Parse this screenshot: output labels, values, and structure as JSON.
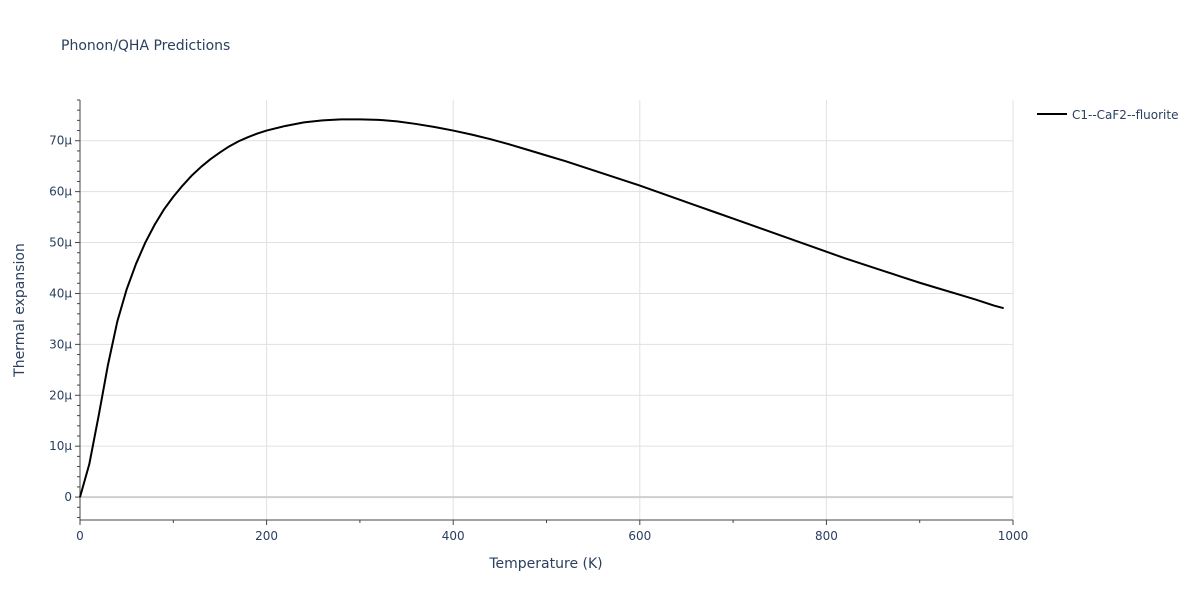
{
  "chart_data": {
    "type": "line",
    "title": "Phonon/QHA Predictions",
    "xlabel": "Temperature (K)",
    "ylabel": "Thermal expansion",
    "xlim": [
      0,
      1000
    ],
    "ylim": [
      -4.5e-06,
      7.8e-05
    ],
    "x_ticks": [
      0,
      200,
      400,
      600,
      800,
      1000
    ],
    "x_tick_labels": [
      "0",
      "200",
      "400",
      "600",
      "800",
      "1000"
    ],
    "y_ticks": [
      0,
      1e-05,
      2e-05,
      3e-05,
      4e-05,
      5e-05,
      6e-05,
      7e-05
    ],
    "y_tick_labels": [
      "0",
      "10μ",
      "20μ",
      "30μ",
      "40μ",
      "50μ",
      "60μ",
      "70μ"
    ],
    "grid": true,
    "legend_position": "top-right",
    "series": [
      {
        "name": "C1--CaF2--fluorite",
        "color": "#000000",
        "x": [
          0,
          10,
          20,
          30,
          40,
          50,
          60,
          70,
          80,
          90,
          100,
          110,
          120,
          130,
          140,
          150,
          160,
          170,
          180,
          190,
          200,
          220,
          240,
          260,
          280,
          300,
          320,
          340,
          360,
          380,
          400,
          420,
          440,
          460,
          480,
          500,
          520,
          540,
          560,
          580,
          600,
          620,
          640,
          660,
          680,
          700,
          720,
          740,
          760,
          780,
          800,
          820,
          840,
          860,
          880,
          900,
          920,
          940,
          960,
          980,
          990
        ],
        "y": [
          0,
          6.5e-06,
          1.6e-05,
          2.6e-05,
          3.45e-05,
          4.08e-05,
          4.58e-05,
          5e-05,
          5.35e-05,
          5.65e-05,
          5.9e-05,
          6.12e-05,
          6.32e-05,
          6.49e-05,
          6.64e-05,
          6.77e-05,
          6.89e-05,
          6.99e-05,
          7.07e-05,
          7.14e-05,
          7.2e-05,
          7.29e-05,
          7.36e-05,
          7.4e-05,
          7.42e-05,
          7.42e-05,
          7.41e-05,
          7.38e-05,
          7.33e-05,
          7.27e-05,
          7.2e-05,
          7.12e-05,
          7.03e-05,
          6.93e-05,
          6.82e-05,
          6.71e-05,
          6.6e-05,
          6.48e-05,
          6.36e-05,
          6.24e-05,
          6.12e-05,
          5.99e-05,
          5.86e-05,
          5.73e-05,
          5.6e-05,
          5.47e-05,
          5.34e-05,
          5.21e-05,
          5.08e-05,
          4.95e-05,
          4.82e-05,
          4.69e-05,
          4.57e-05,
          4.45e-05,
          4.33e-05,
          4.21e-05,
          4.1e-05,
          3.99e-05,
          3.88e-05,
          3.76e-05,
          3.71e-05
        ]
      }
    ]
  }
}
